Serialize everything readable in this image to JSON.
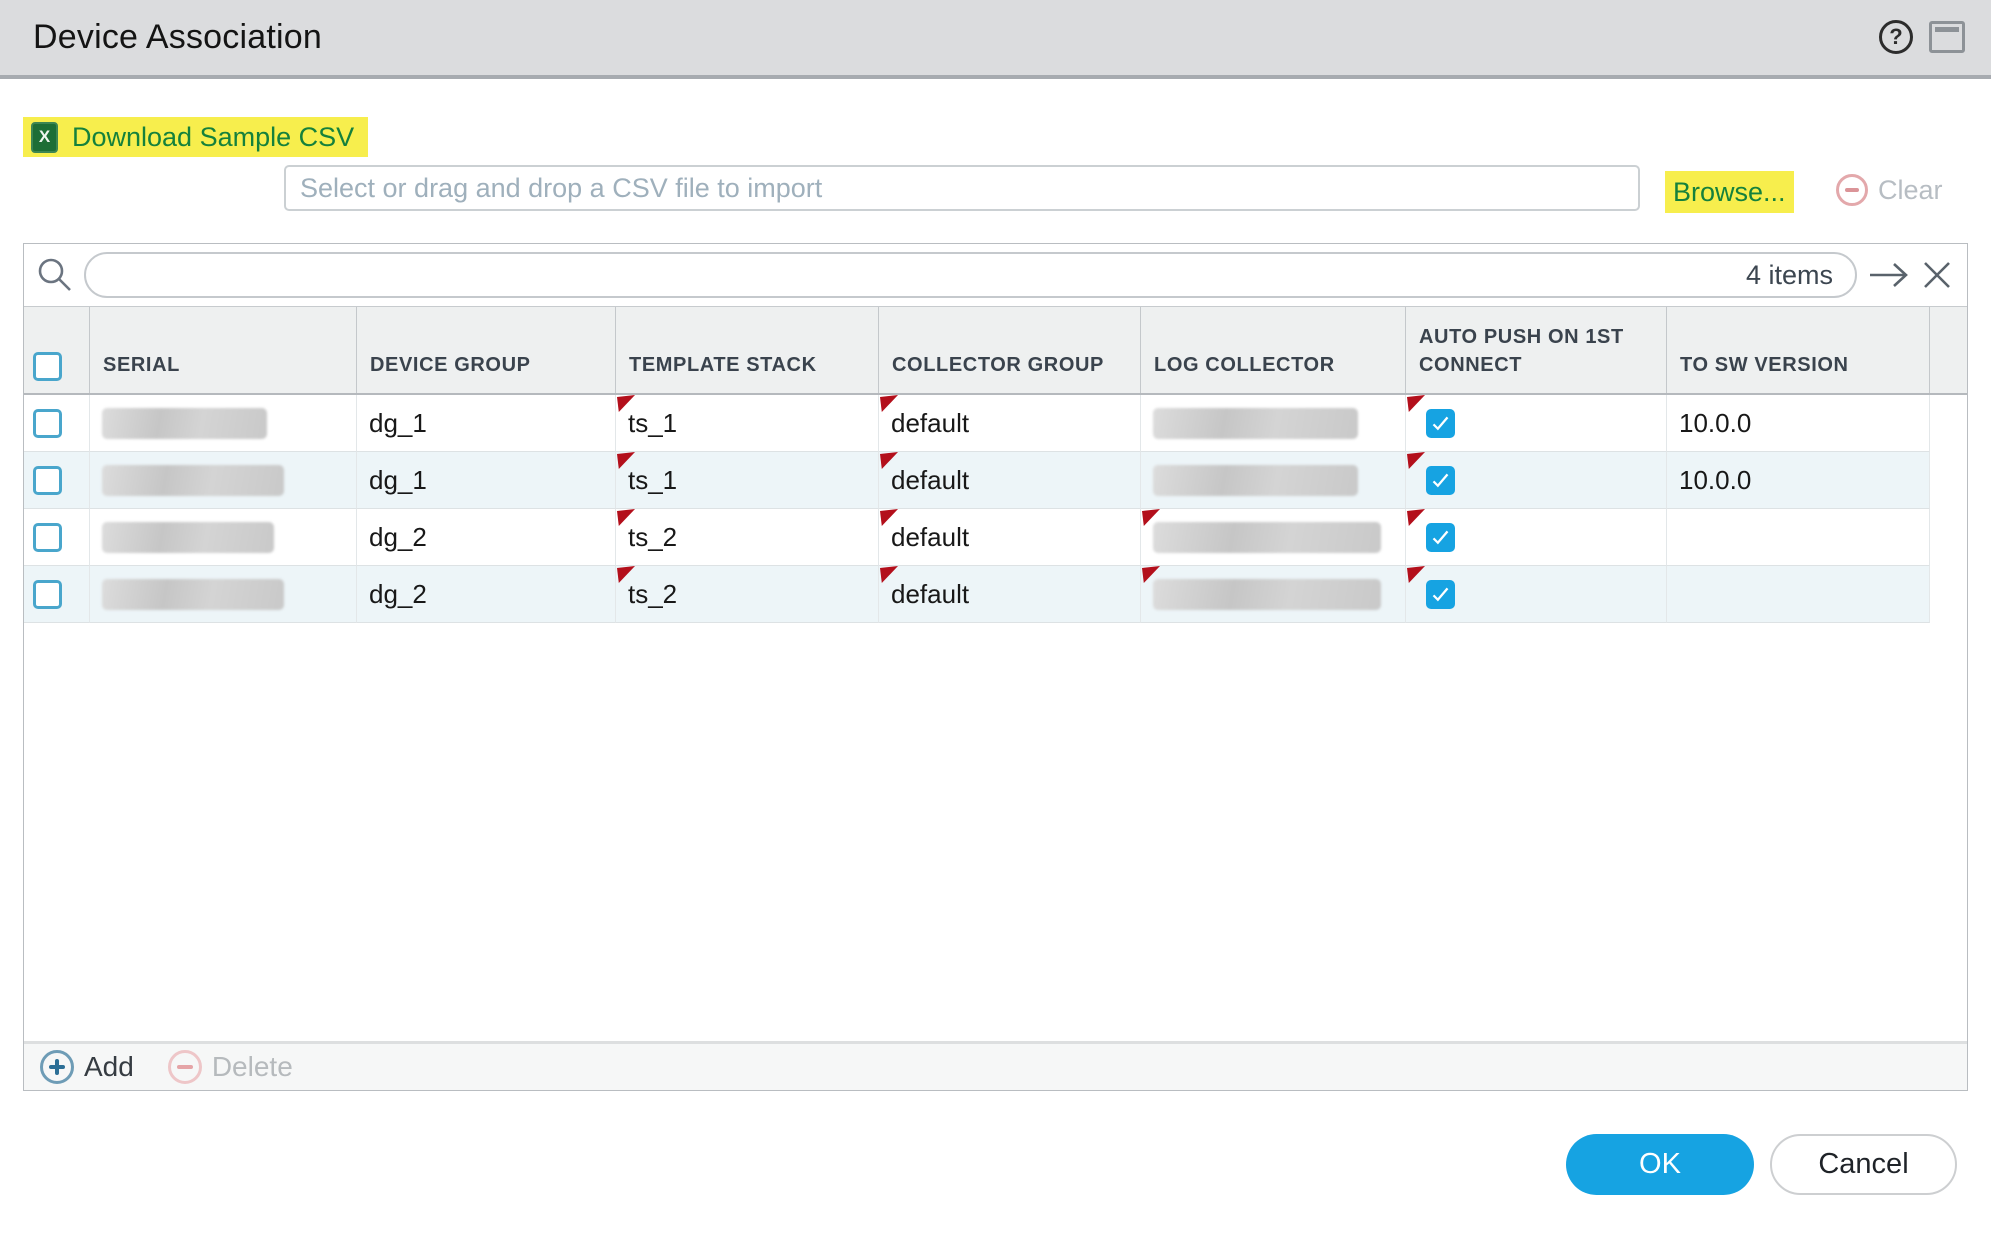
{
  "dialog": {
    "title": "Device Association"
  },
  "toolbar": {
    "download_sample_csv_label": "Download Sample CSV",
    "excel_icon_glyph": "X",
    "file_input_placeholder": "Select or drag and drop a CSV file to import",
    "browse_label": "Browse...",
    "clear_label": "Clear"
  },
  "icons": {
    "help": "?"
  },
  "search": {
    "query": "",
    "items_count": "4 items"
  },
  "table": {
    "columns": [
      "SERIAL",
      "DEVICE GROUP",
      "TEMPLATE STACK",
      "COLLECTOR GROUP",
      "LOG COLLECTOR",
      "AUTO PUSH ON 1ST CONNECT",
      "TO SW VERSION"
    ],
    "rows": [
      {
        "selected": false,
        "serial_redacted": true,
        "device_group": "dg_1",
        "template_stack": "ts_1",
        "collector_group": "default",
        "log_collector_redacted": true,
        "auto_push_checked": true,
        "to_sw_version": "10.0.0",
        "flags": {
          "template_stack": true,
          "collector_group": true,
          "log_collector": false,
          "auto_push": true
        }
      },
      {
        "selected": false,
        "serial_redacted": true,
        "device_group": "dg_1",
        "template_stack": "ts_1",
        "collector_group": "default",
        "log_collector_redacted": true,
        "auto_push_checked": true,
        "to_sw_version": "10.0.0",
        "flags": {
          "template_stack": true,
          "collector_group": true,
          "log_collector": false,
          "auto_push": true
        }
      },
      {
        "selected": false,
        "serial_redacted": true,
        "device_group": "dg_2",
        "template_stack": "ts_2",
        "collector_group": "default",
        "log_collector_redacted": true,
        "auto_push_checked": true,
        "to_sw_version": "",
        "flags": {
          "template_stack": true,
          "collector_group": true,
          "log_collector": true,
          "auto_push": true
        }
      },
      {
        "selected": false,
        "serial_redacted": true,
        "device_group": "dg_2",
        "template_stack": "ts_2",
        "collector_group": "default",
        "log_collector_redacted": true,
        "auto_push_checked": true,
        "to_sw_version": "",
        "flags": {
          "template_stack": true,
          "collector_group": true,
          "log_collector": true,
          "auto_push": true
        }
      }
    ]
  },
  "table_footer": {
    "add_label": "Add",
    "delete_label": "Delete"
  },
  "actions": {
    "ok_label": "OK",
    "cancel_label": "Cancel"
  },
  "colors": {
    "accent_blue": "#16a3e2",
    "link_green": "#15813c",
    "highlight_yellow": "#f7ee4d",
    "flag_red": "#b30f1b",
    "titlebar_gray": "#dbdcde",
    "alt_row": "#edf5f8"
  }
}
